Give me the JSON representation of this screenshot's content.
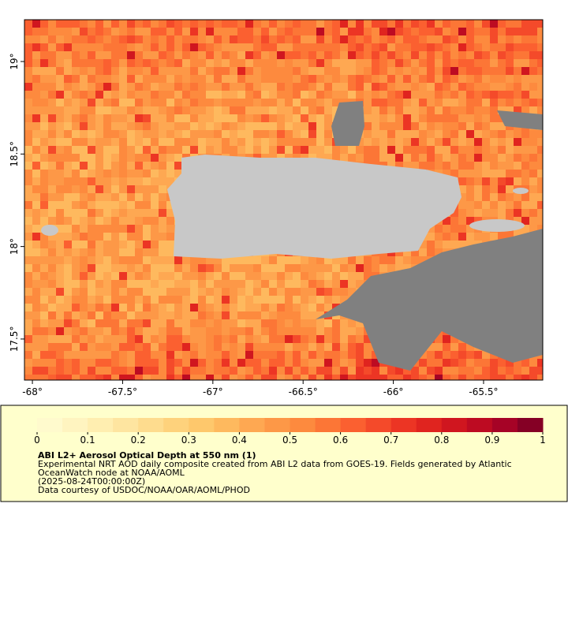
{
  "map": {
    "xlim": [
      -68.044,
      -65.172
    ],
    "ylim": [
      17.278,
      19.226
    ],
    "xticks": [
      {
        "value": -68,
        "label": "-68°"
      },
      {
        "value": -67.5,
        "label": "-67.5°"
      },
      {
        "value": -67,
        "label": "-67°"
      },
      {
        "value": -66.5,
        "label": "-66.5°"
      },
      {
        "value": -66,
        "label": "-66°"
      },
      {
        "value": -65.5,
        "label": "-65.5°"
      }
    ],
    "yticks": [
      {
        "value": 17.5,
        "label": "17.5°"
      },
      {
        "value": 18,
        "label": "18°"
      },
      {
        "value": 18.5,
        "label": "18.5°"
      },
      {
        "value": 19,
        "label": "19°"
      }
    ]
  },
  "colorbar": {
    "lim": [
      0,
      1
    ],
    "ticks": [
      0,
      0.1,
      0.2,
      0.3,
      0.4,
      0.5,
      0.6,
      0.7,
      0.8,
      0.9,
      1
    ],
    "colors": [
      "#fffacd",
      "#fff4c0",
      "#ffeeb0",
      "#fee5a0",
      "#fedc8e",
      "#fed27c",
      "#fec86c",
      "#feb95e",
      "#fea852",
      "#fd9847",
      "#fd8a3e",
      "#fc7636",
      "#fb6030",
      "#f44a2a",
      "#ec3524",
      "#e0241f",
      "#d0161f",
      "#bd0b22",
      "#a60326",
      "#850025"
    ]
  },
  "legend": {
    "title": "ABI L2+ Aerosol Optical Depth at 550 nm (1)",
    "lines": [
      "Experimental NRT AOD daily composite created from ABI L2 data from GOES-19. Fields generated by Atlantic",
      "OceanWatch node at NOAA/AOML",
      "(2025-08-24T00:00:00Z)",
      "Data courtesy of USDOC/NOAA/OAR/AOML/PHOD"
    ]
  }
}
